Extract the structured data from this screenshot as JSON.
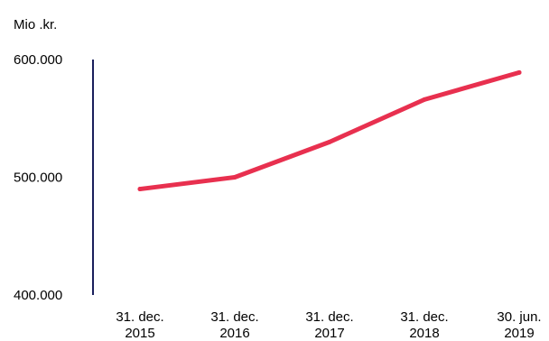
{
  "chart_data": {
    "type": "line",
    "unit_label": "Mio .kr.",
    "categories": [
      [
        "31. dec.",
        "2015"
      ],
      [
        "31. dec.",
        "2016"
      ],
      [
        "31. dec.",
        "2017"
      ],
      [
        "31. dec.",
        "2018"
      ],
      [
        "30. jun.",
        "2019"
      ]
    ],
    "series": [
      {
        "values": [
          490000,
          500000,
          530000,
          566000,
          589000
        ],
        "color": "#e8304f"
      }
    ],
    "ylim": [
      400000,
      600000
    ],
    "yticks": [
      {
        "value": 600000,
        "label": "600.000"
      },
      {
        "value": 500000,
        "label": "500.000"
      },
      {
        "value": 400000,
        "label": "400.000"
      }
    ],
    "axis_color": "#1a1f5c",
    "grid": false,
    "legend": "none"
  }
}
